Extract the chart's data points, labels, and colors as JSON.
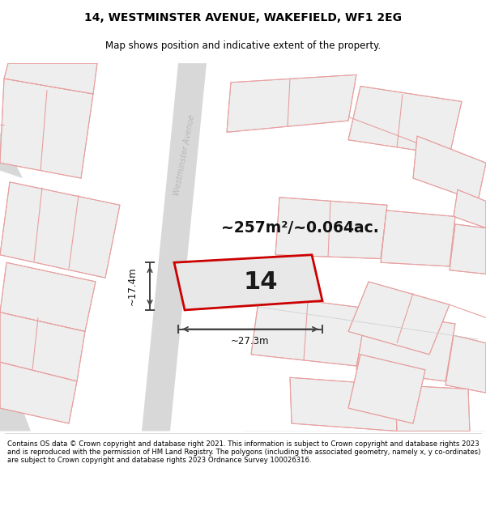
{
  "title_line1": "14, WESTMINSTER AVENUE, WAKEFIELD, WF1 2EG",
  "title_line2": "Map shows position and indicative extent of the property.",
  "area_text": "~257m²/~0.064ac.",
  "number_label": "14",
  "width_label": "~27.3m",
  "height_label": "~17.4m",
  "road_label": "Westminster Avenue",
  "footer_text": "Contains OS data © Crown copyright and database right 2021. This information is subject to Crown copyright and database rights 2023 and is reproduced with the permission of HM Land Registry. The polygons (including the associated geometry, namely x, y co-ordinates) are subject to Crown copyright and database rights 2023 Ordnance Survey 100026316.",
  "map_bg": "#f7f7f7",
  "building_fill": "#eeeeee",
  "building_edge": "#cccccc",
  "road_fill": "#d8d8d8",
  "plot_outline_color": "#cc0000",
  "parcel_line_color": "#e8a0a0",
  "dim_color": "#444444",
  "text_color": "#000000",
  "road_text_color": "#b8b8b8"
}
